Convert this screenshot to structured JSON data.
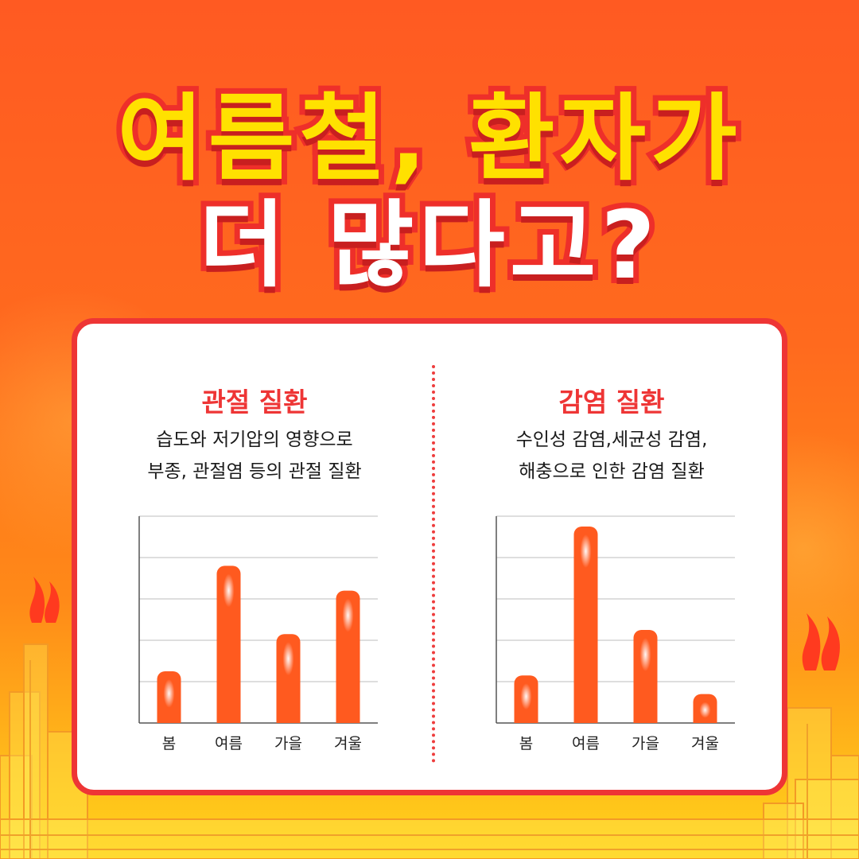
{
  "title": {
    "line1": "여름철, 환자가",
    "line2": "더 많다고?"
  },
  "colors": {
    "background_top": "#ff5a22",
    "background_bottom": "#ffd21c",
    "title_fill_line1": "#ffe100",
    "title_fill_line2": "#ffffff",
    "title_stroke": "#ee2f2a",
    "card_border": "#ee3535",
    "bar": "#ff5a1f",
    "accent_text": "#ee3535"
  },
  "panels": [
    {
      "heading": "관절 질환",
      "description": [
        "습도와 저기압의 영향으로",
        "부종, 관절염 등의 관절 질환"
      ]
    },
    {
      "heading": "감염 질환",
      "description": [
        "수인성 감염,세균성 감염,",
        "해충으로 인한 감염 질환"
      ]
    }
  ],
  "chart_data": [
    {
      "type": "bar",
      "categories": [
        "봄",
        "여름",
        "가을",
        "겨울"
      ],
      "values": [
        1.25,
        3.8,
        2.15,
        3.2
      ],
      "ylim": [
        0,
        5
      ],
      "grid": true,
      "legend": "none"
    },
    {
      "type": "bar",
      "categories": [
        "봄",
        "여름",
        "가을",
        "겨울"
      ],
      "values": [
        1.15,
        4.75,
        2.25,
        0.7
      ],
      "ylim": [
        0,
        5
      ],
      "grid": true,
      "legend": "none"
    }
  ]
}
